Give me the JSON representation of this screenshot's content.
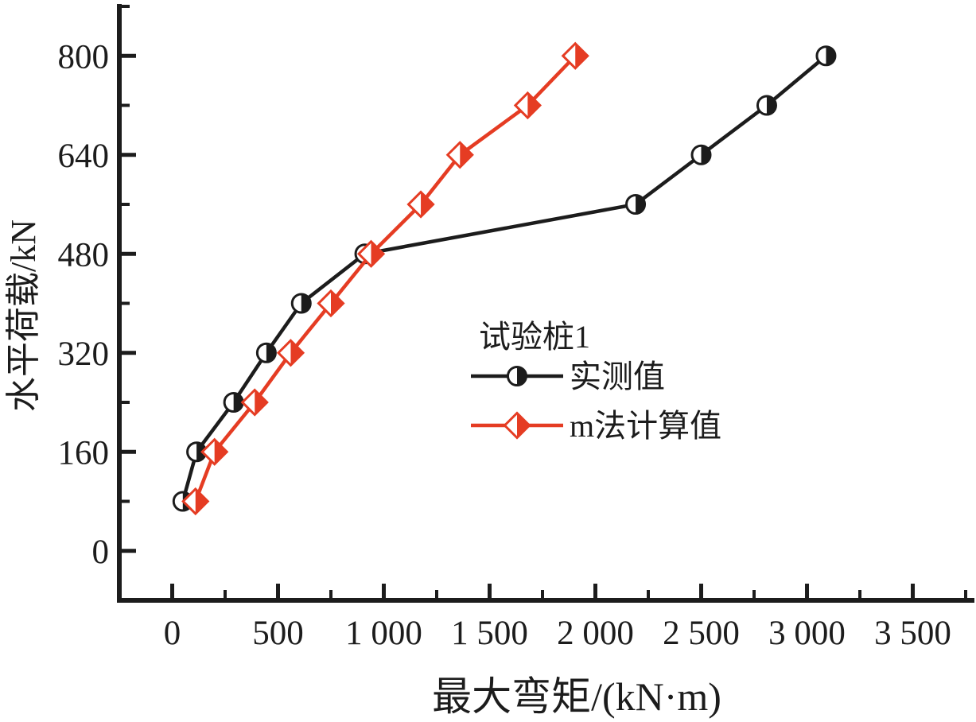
{
  "chart_data": {
    "type": "line",
    "title": "",
    "xlabel": "最大弯矩/(kN·m)",
    "ylabel": "水平荷载/kN",
    "xlim": [
      -250,
      3780
    ],
    "ylim": [
      -80,
      880
    ],
    "grid": false,
    "background": "#ffffff",
    "axis_color": "#1c1c1c",
    "x_ticks": {
      "major": [
        0,
        500,
        1000,
        1500,
        2000,
        2500,
        3000,
        3500
      ],
      "labels": [
        "0",
        "500",
        "1 000",
        "1 500",
        "2 000",
        "2 500",
        "3 000",
        "3 500"
      ],
      "minor": [
        250,
        750,
        1250,
        1750,
        2250,
        2750,
        3250,
        3750
      ]
    },
    "y_ticks": {
      "major": [
        0,
        160,
        320,
        480,
        640,
        800
      ],
      "labels": [
        "0",
        "160",
        "320",
        "480",
        "640",
        "800"
      ],
      "minor": [
        80,
        240,
        400,
        560,
        720,
        880
      ]
    },
    "legend": {
      "title": "试验桩1",
      "position": "inside-middle-right",
      "entries": [
        {
          "label": "实测值",
          "series_id": "measured"
        },
        {
          "label": "m法计算值",
          "series_id": "m-method"
        }
      ]
    },
    "series": [
      {
        "id": "measured",
        "name": "实测值",
        "color": "#1c1c1c",
        "marker": "half-circle",
        "x_is": "max_bending_moment_kNm",
        "y_is": "horizontal_load_kN",
        "points": [
          [
            50,
            80
          ],
          [
            115,
            160
          ],
          [
            290,
            240
          ],
          [
            445,
            320
          ],
          [
            610,
            400
          ],
          [
            910,
            480
          ],
          [
            2190,
            560
          ],
          [
            2500,
            640
          ],
          [
            2810,
            720
          ],
          [
            3090,
            800
          ]
        ]
      },
      {
        "id": "m-method",
        "name": "m法计算值",
        "color": "#e53c23",
        "marker": "half-diamond",
        "x_is": "max_bending_moment_kNm",
        "y_is": "horizontal_load_kN",
        "points": [
          [
            110,
            80
          ],
          [
            200,
            160
          ],
          [
            390,
            240
          ],
          [
            560,
            320
          ],
          [
            750,
            400
          ],
          [
            940,
            480
          ],
          [
            1175,
            560
          ],
          [
            1360,
            640
          ],
          [
            1680,
            720
          ],
          [
            1905,
            800
          ]
        ]
      }
    ]
  }
}
